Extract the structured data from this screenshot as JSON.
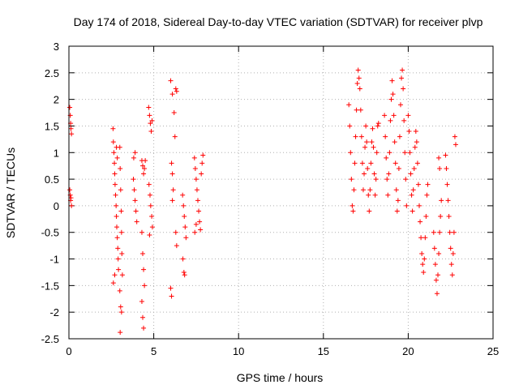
{
  "chart_data": {
    "type": "scatter",
    "title": "Day 174 of 2018, Sidereal Day-to-day VTEC variation (SDTVAR) for receiver plvp",
    "xlabel": "GPS time / hours",
    "ylabel": "SDTVAR / TECUs",
    "xlim": [
      0,
      25
    ],
    "ylim": [
      -2.5,
      3
    ],
    "xticks": [
      0,
      5,
      10,
      15,
      20,
      25
    ],
    "yticks": [
      -2.5,
      -2,
      -1.5,
      -1,
      -0.5,
      0,
      0.5,
      1,
      1.5,
      2,
      2.5,
      3
    ],
    "xtick_labels": [
      "0",
      "5",
      "10",
      "15",
      "20",
      "25"
    ],
    "ytick_labels": [
      "-2.5",
      "-2",
      "-1.5",
      "-1",
      "-0.5",
      "0",
      "0.5",
      "1",
      "1.5",
      "2",
      "2.5",
      "3"
    ],
    "grid": true,
    "marker": "+",
    "color": "#ff0000",
    "series": [
      {
        "name": "plvp",
        "points": [
          [
            0.05,
            1.85
          ],
          [
            0.08,
            1.7
          ],
          [
            0.1,
            1.55
          ],
          [
            0.12,
            1.45
          ],
          [
            0.15,
            1.35
          ],
          [
            0.05,
            0.3
          ],
          [
            0.08,
            0.2
          ],
          [
            0.1,
            0.1
          ],
          [
            0.12,
            0.15
          ],
          [
            0.15,
            0.0
          ],
          [
            2.6,
            1.45
          ],
          [
            2.62,
            1.2
          ],
          [
            2.65,
            1.0
          ],
          [
            2.68,
            0.8
          ],
          [
            2.7,
            0.6
          ],
          [
            2.72,
            0.4
          ],
          [
            2.75,
            0.2
          ],
          [
            2.78,
            0.0
          ],
          [
            2.8,
            -0.2
          ],
          [
            2.82,
            -0.4
          ],
          [
            2.85,
            -0.6
          ],
          [
            2.88,
            -0.8
          ],
          [
            2.9,
            -1.0
          ],
          [
            2.92,
            -1.2
          ],
          [
            2.62,
            -1.45
          ],
          [
            2.7,
            -1.3
          ],
          [
            2.8,
            1.1
          ],
          [
            2.85,
            0.9
          ],
          [
            3.0,
            1.1
          ],
          [
            3.02,
            0.7
          ],
          [
            3.05,
            0.3
          ],
          [
            3.08,
            -0.1
          ],
          [
            3.1,
            -0.5
          ],
          [
            3.12,
            -0.9
          ],
          [
            3.15,
            -1.3
          ],
          [
            3.0,
            -1.6
          ],
          [
            3.05,
            -1.9
          ],
          [
            3.1,
            -2.0
          ],
          [
            3.02,
            -2.38
          ],
          [
            3.8,
            0.5
          ],
          [
            3.85,
            0.3
          ],
          [
            3.9,
            0.1
          ],
          [
            3.95,
            -0.1
          ],
          [
            4.0,
            -0.3
          ],
          [
            3.82,
            0.9
          ],
          [
            3.9,
            1.0
          ],
          [
            4.3,
            0.85
          ],
          [
            4.35,
            0.75
          ],
          [
            4.4,
            0.6
          ],
          [
            4.45,
            0.7
          ],
          [
            4.5,
            0.85
          ],
          [
            4.3,
            -0.5
          ],
          [
            4.35,
            -0.9
          ],
          [
            4.4,
            -1.2
          ],
          [
            4.45,
            -1.5
          ],
          [
            4.3,
            -1.8
          ],
          [
            4.35,
            -2.1
          ],
          [
            4.4,
            -2.3
          ],
          [
            4.7,
            1.85
          ],
          [
            4.75,
            1.7
          ],
          [
            4.8,
            1.55
          ],
          [
            4.85,
            1.4
          ],
          [
            4.9,
            1.6
          ],
          [
            4.72,
            0.4
          ],
          [
            4.78,
            0.2
          ],
          [
            4.82,
            0.0
          ],
          [
            4.88,
            -0.2
          ],
          [
            4.92,
            -0.4
          ],
          [
            4.75,
            -0.55
          ],
          [
            6.0,
            2.35
          ],
          [
            6.1,
            2.1
          ],
          [
            6.3,
            2.2
          ],
          [
            6.35,
            2.15
          ],
          [
            6.2,
            1.75
          ],
          [
            6.25,
            1.3
          ],
          [
            6.05,
            0.8
          ],
          [
            6.1,
            0.6
          ],
          [
            6.15,
            0.3
          ],
          [
            6.1,
            0.1
          ],
          [
            6.3,
            -0.5
          ],
          [
            6.35,
            -0.75
          ],
          [
            6.0,
            -1.55
          ],
          [
            6.05,
            -1.7
          ],
          [
            6.7,
            0.2
          ],
          [
            6.75,
            0.0
          ],
          [
            6.8,
            -0.2
          ],
          [
            6.85,
            -0.4
          ],
          [
            6.9,
            -0.6
          ],
          [
            6.72,
            -1.0
          ],
          [
            6.78,
            -1.25
          ],
          [
            6.82,
            -1.3
          ],
          [
            7.4,
            0.9
          ],
          [
            7.45,
            0.7
          ],
          [
            7.5,
            0.5
          ],
          [
            7.55,
            0.3
          ],
          [
            7.6,
            0.1
          ],
          [
            7.65,
            -0.1
          ],
          [
            7.7,
            -0.3
          ],
          [
            7.75,
            -0.45
          ],
          [
            7.8,
            0.6
          ],
          [
            7.85,
            0.8
          ],
          [
            7.9,
            0.95
          ],
          [
            7.42,
            -0.5
          ],
          [
            7.5,
            -0.35
          ],
          [
            16.5,
            1.9
          ],
          [
            16.55,
            1.5
          ],
          [
            16.6,
            1.0
          ],
          [
            16.65,
            0.5
          ],
          [
            16.7,
            0.0
          ],
          [
            16.75,
            -0.1
          ],
          [
            16.8,
            0.3
          ],
          [
            16.85,
            0.8
          ],
          [
            16.9,
            1.3
          ],
          [
            16.95,
            1.8
          ],
          [
            17.0,
            2.3
          ],
          [
            17.05,
            2.55
          ],
          [
            17.1,
            2.4
          ],
          [
            17.15,
            2.2
          ],
          [
            17.2,
            1.8
          ],
          [
            17.25,
            1.3
          ],
          [
            17.3,
            0.8
          ],
          [
            17.35,
            0.3
          ],
          [
            17.4,
            0.6
          ],
          [
            17.45,
            1.1
          ],
          [
            17.5,
            1.5
          ],
          [
            17.55,
            1.2
          ],
          [
            17.6,
            0.7
          ],
          [
            17.65,
            0.2
          ],
          [
            17.7,
            -0.1
          ],
          [
            17.75,
            0.3
          ],
          [
            17.8,
            0.8
          ],
          [
            17.85,
            1.2
          ],
          [
            17.9,
            1.45
          ],
          [
            17.95,
            1.1
          ],
          [
            18.0,
            0.6
          ],
          [
            18.05,
            0.2
          ],
          [
            18.1,
            0.5
          ],
          [
            18.15,
            1.0
          ],
          [
            18.2,
            1.5
          ],
          [
            18.25,
            1.55
          ],
          [
            18.6,
            1.7
          ],
          [
            18.65,
            1.3
          ],
          [
            18.7,
            0.9
          ],
          [
            18.75,
            0.5
          ],
          [
            18.8,
            0.2
          ],
          [
            18.85,
            0.6
          ],
          [
            18.9,
            1.0
          ],
          [
            18.95,
            1.6
          ],
          [
            19.0,
            2.0
          ],
          [
            19.05,
            2.35
          ],
          [
            19.1,
            2.1
          ],
          [
            19.15,
            1.7
          ],
          [
            19.2,
            1.2
          ],
          [
            19.25,
            0.8
          ],
          [
            19.3,
            0.3
          ],
          [
            19.35,
            -0.1
          ],
          [
            19.4,
            0.1
          ],
          [
            19.45,
            0.7
          ],
          [
            19.5,
            1.3
          ],
          [
            19.55,
            1.9
          ],
          [
            19.6,
            2.4
          ],
          [
            19.65,
            2.55
          ],
          [
            19.7,
            2.2
          ],
          [
            19.75,
            1.6
          ],
          [
            19.8,
            1.0
          ],
          [
            19.85,
            0.5
          ],
          [
            19.9,
            0.0
          ],
          [
            20.0,
            1.7
          ],
          [
            20.05,
            1.4
          ],
          [
            20.1,
            1.0
          ],
          [
            20.15,
            0.6
          ],
          [
            20.2,
            0.2
          ],
          [
            20.25,
            -0.1
          ],
          [
            20.3,
            0.3
          ],
          [
            20.35,
            0.7
          ],
          [
            20.4,
            1.1
          ],
          [
            20.45,
            1.4
          ],
          [
            20.5,
            1.2
          ],
          [
            20.55,
            0.8
          ],
          [
            20.6,
            0.4
          ],
          [
            20.65,
            0.0
          ],
          [
            20.7,
            -0.3
          ],
          [
            20.75,
            -0.6
          ],
          [
            20.8,
            -0.9
          ],
          [
            20.85,
            -1.1
          ],
          [
            20.9,
            -1.25
          ],
          [
            20.95,
            -1.0
          ],
          [
            21.0,
            -0.6
          ],
          [
            21.05,
            -0.2
          ],
          [
            21.1,
            0.2
          ],
          [
            21.15,
            0.4
          ],
          [
            21.5,
            -0.5
          ],
          [
            21.55,
            -0.8
          ],
          [
            21.6,
            -1.1
          ],
          [
            21.65,
            -1.4
          ],
          [
            21.7,
            -1.65
          ],
          [
            21.75,
            -1.3
          ],
          [
            21.8,
            -0.9
          ],
          [
            21.85,
            -0.5
          ],
          [
            21.9,
            -0.2
          ],
          [
            21.95,
            0.1
          ],
          [
            21.8,
            0.9
          ],
          [
            21.85,
            0.7
          ],
          [
            22.2,
            0.95
          ],
          [
            22.25,
            0.7
          ],
          [
            22.3,
            0.4
          ],
          [
            22.35,
            0.1
          ],
          [
            22.4,
            -0.2
          ],
          [
            22.45,
            -0.5
          ],
          [
            22.5,
            -0.8
          ],
          [
            22.55,
            -1.1
          ],
          [
            22.6,
            -1.3
          ],
          [
            22.65,
            -0.9
          ],
          [
            22.7,
            -0.5
          ],
          [
            22.75,
            1.3
          ],
          [
            22.8,
            1.15
          ]
        ]
      }
    ]
  }
}
